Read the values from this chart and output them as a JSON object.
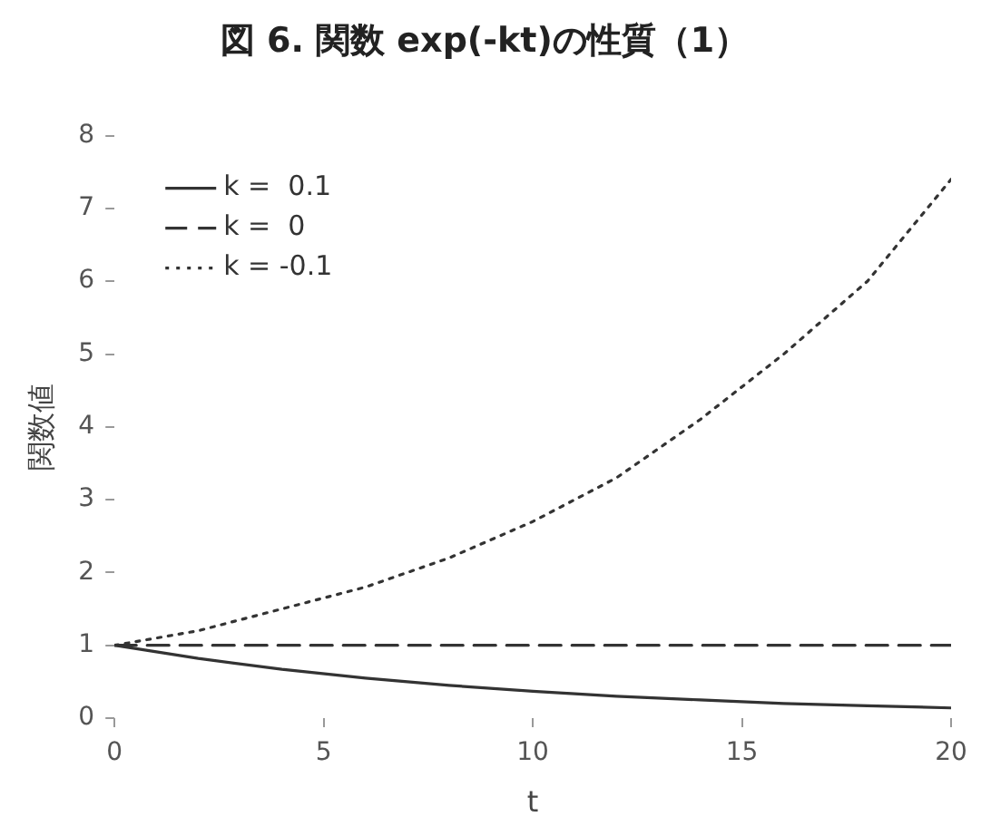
{
  "chart_data": {
    "type": "line",
    "title": "図 6. 関数 exp(-kt)の性質（1）",
    "xlabel": "t",
    "ylabel": "関数値",
    "x": [
      0,
      2,
      4,
      6,
      8,
      10,
      12,
      14,
      16,
      18,
      20
    ],
    "xlim": [
      0,
      20
    ],
    "xticks": [
      0,
      5,
      10,
      15,
      20
    ],
    "ylim": [
      0,
      8
    ],
    "yticks": [
      0,
      1,
      2,
      3,
      4,
      5,
      6,
      7,
      8
    ],
    "grid": false,
    "legend": "top left",
    "marker": "none",
    "series": [
      {
        "name": "k =  0.1",
        "color": "#333333",
        "line_style": "solid",
        "values": [
          1,
          0.82,
          0.67,
          0.55,
          0.45,
          0.37,
          0.3,
          0.25,
          0.2,
          0.17,
          0.14
        ]
      },
      {
        "name": "k =  0",
        "color": "#333333",
        "line_style": "dashed",
        "values": [
          1,
          1,
          1,
          1,
          1,
          1,
          1,
          1,
          1,
          1,
          1
        ]
      },
      {
        "name": "k = -0.1",
        "color": "#333333",
        "line_style": "dotted",
        "values": [
          1,
          1.2,
          1.5,
          1.8,
          2.2,
          2.7,
          3.3,
          4.1,
          5,
          6,
          7.4
        ]
      }
    ]
  }
}
